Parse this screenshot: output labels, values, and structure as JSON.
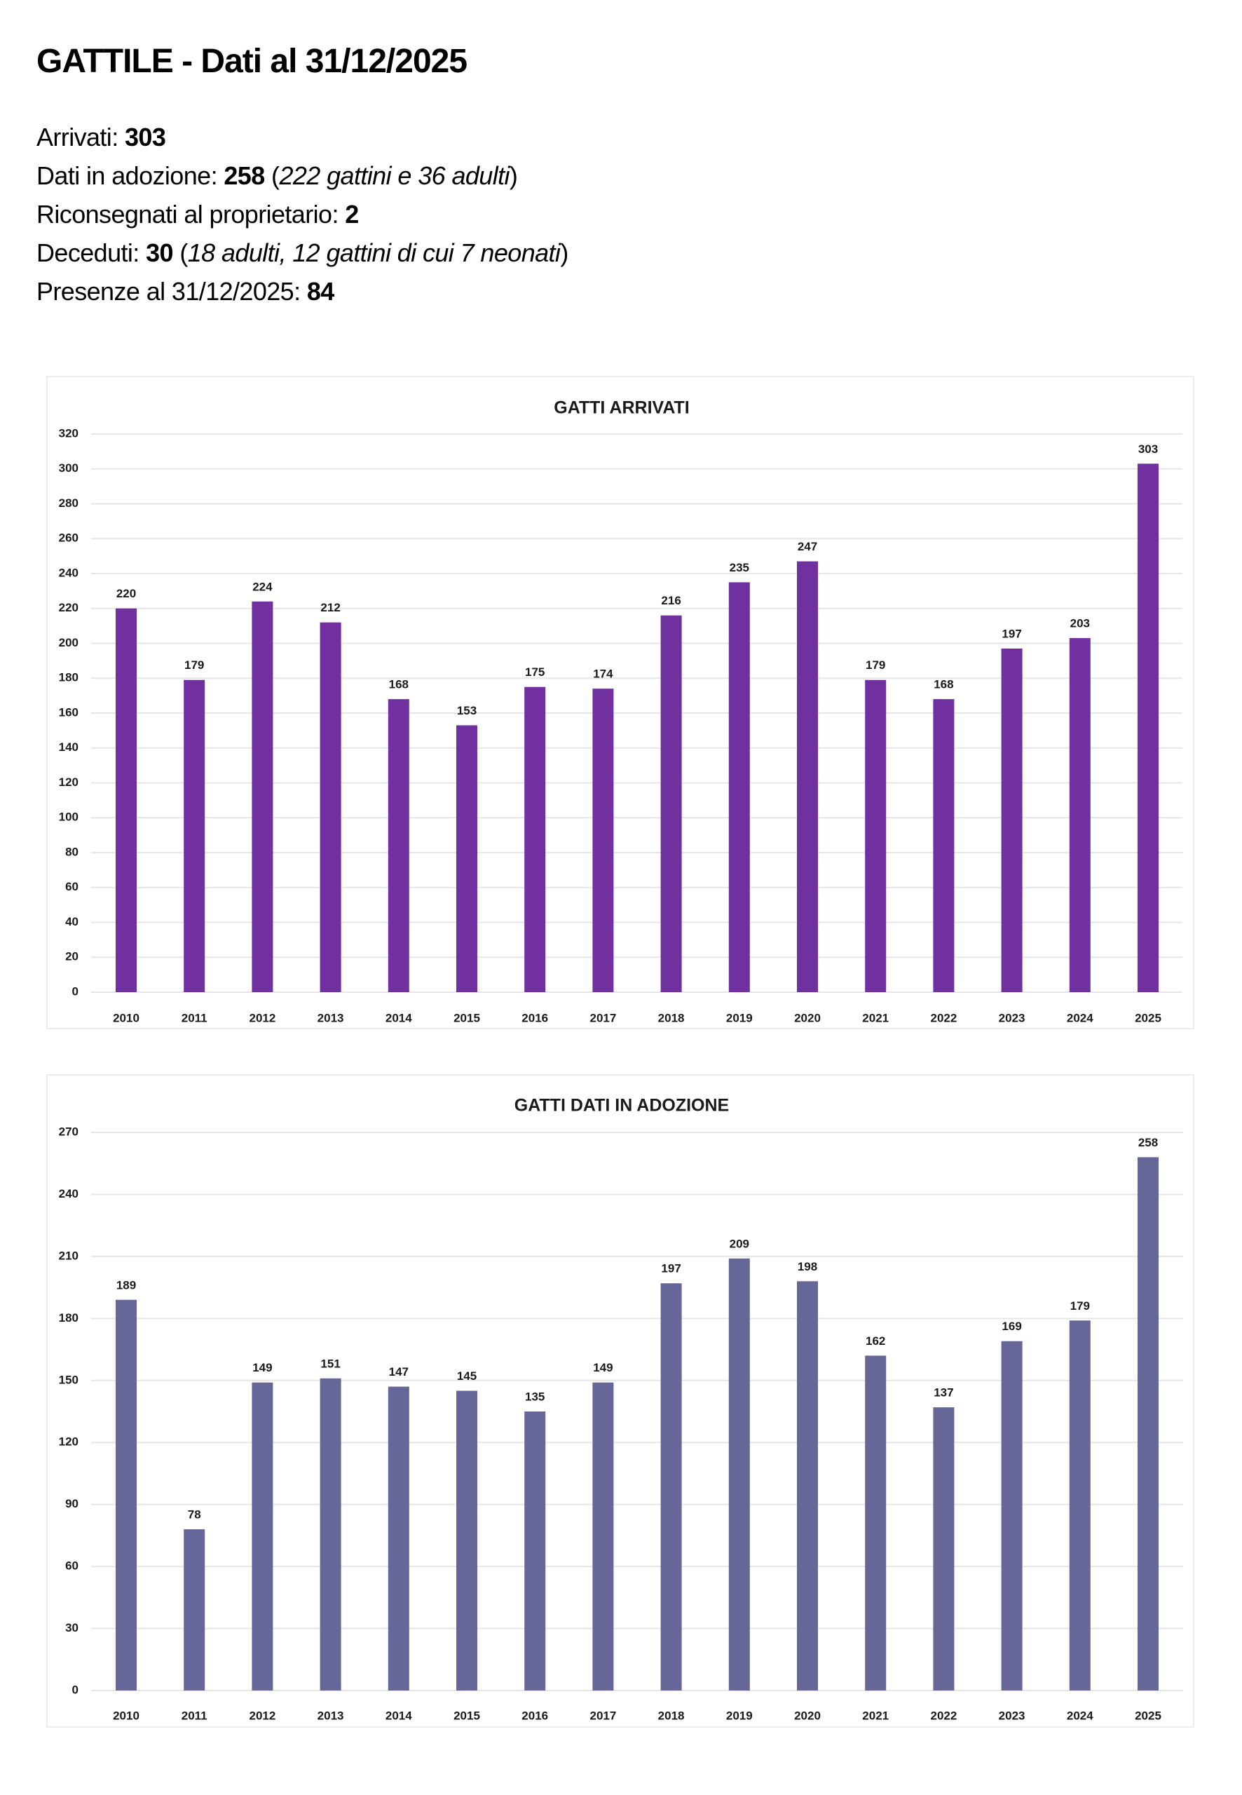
{
  "header": {
    "title": "GATTILE - Dati al 31/12/2025"
  },
  "stats": [
    {
      "label": "Arrivati: ",
      "value": "303",
      "detail_open": "",
      "detail": "",
      "detail_close": ""
    },
    {
      "label": "Dati in adozione: ",
      "value": "258",
      "detail_open": " (",
      "detail": "222 gattini e 36 adulti",
      "detail_close": ")"
    },
    {
      "label": "Riconsegnati al proprietario: ",
      "value": "2",
      "detail_open": "",
      "detail": "",
      "detail_close": ""
    },
    {
      "label": "Deceduti: ",
      "value": "30",
      "detail_open": " (",
      "detail": "18 adulti, 12 gattini di cui 7 neonati",
      "detail_close": ")"
    },
    {
      "label": "Presenze al 31/12/2025: ",
      "value": "84",
      "detail_open": "",
      "detail": "",
      "detail_close": ""
    }
  ],
  "chart_data": [
    {
      "type": "bar",
      "title": "GATTI ARRIVATI",
      "xlabel": "",
      "ylabel": "",
      "categories": [
        "2010",
        "2011",
        "2012",
        "2013",
        "2014",
        "2015",
        "2016",
        "2017",
        "2018",
        "2019",
        "2020",
        "2021",
        "2022",
        "2023",
        "2024",
        "2025"
      ],
      "values": [
        220,
        179,
        224,
        212,
        168,
        153,
        175,
        174,
        216,
        235,
        247,
        179,
        168,
        197,
        203,
        303
      ],
      "ylim": [
        0,
        320
      ],
      "yticks": [
        0,
        20,
        40,
        60,
        80,
        100,
        120,
        140,
        160,
        180,
        200,
        220,
        240,
        260,
        280,
        300,
        320
      ],
      "grid": true,
      "legend": "none",
      "color": "#7030A0"
    },
    {
      "type": "bar",
      "title": "GATTI DATI IN ADOZIONE",
      "xlabel": "",
      "ylabel": "",
      "categories": [
        "2010",
        "2011",
        "2012",
        "2013",
        "2014",
        "2015",
        "2016",
        "2017",
        "2018",
        "2019",
        "2020",
        "2021",
        "2022",
        "2023",
        "2024",
        "2025"
      ],
      "values": [
        189,
        78,
        149,
        151,
        147,
        145,
        135,
        149,
        197,
        209,
        198,
        162,
        137,
        169,
        179,
        258
      ],
      "ylim": [
        0,
        270
      ],
      "yticks": [
        0,
        30,
        60,
        90,
        120,
        150,
        180,
        210,
        240,
        270
      ],
      "grid": true,
      "legend": "none",
      "color": "#666699"
    }
  ]
}
